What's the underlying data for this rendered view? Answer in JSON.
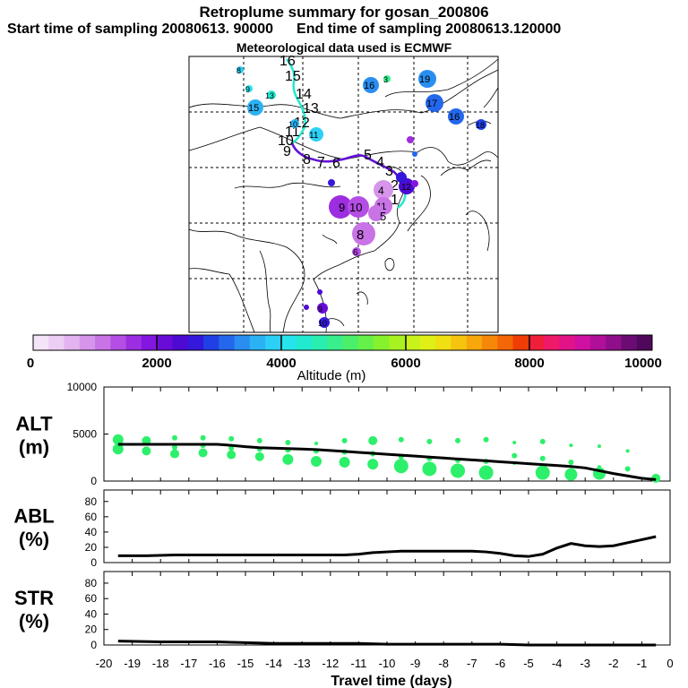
{
  "header": {
    "title": "Retroplume summary for gosan_200806",
    "start_label": "Start time of sampling 20080613. 90000",
    "end_label": "End time of sampling 20080613.120000",
    "met_label": "Meteorological data used is ECMWF"
  },
  "colorbar": {
    "label": "Altitude (m)",
    "ticks": [
      "0",
      "2000",
      "4000",
      "6000",
      "8000",
      "10000"
    ],
    "colors": [
      "#f4e4f8",
      "#eccdf4",
      "#e2b3ef",
      "#d695ea",
      "#c873e6",
      "#b44ee4",
      "#9d2de0",
      "#8316df",
      "#6a0cd8",
      "#4d0ad3",
      "#3418dc",
      "#2040e6",
      "#2467ec",
      "#2a8ef1",
      "#2ab2f4",
      "#2ccff5",
      "#26e4ec",
      "#22ead0",
      "#2aedb0",
      "#39ee8c",
      "#4cef6a",
      "#66f14a",
      "#86f22e",
      "#a8f221",
      "#c7f21b",
      "#e0ef16",
      "#f0df12",
      "#f6c40e",
      "#f7a60b",
      "#f78708",
      "#f46706",
      "#ef3d05",
      "#ef1f3a",
      "#ee1968",
      "#e21388",
      "#cf10a0",
      "#b00f99",
      "#8f0e8a",
      "#6d0b74",
      "#4f085c"
    ]
  },
  "map": {
    "trajectory_labels": [
      "16",
      "15",
      "14",
      "13",
      "12",
      "11",
      "10",
      "9",
      "8",
      "7",
      "6",
      "5",
      "4",
      "3",
      "2",
      "1"
    ],
    "blobs": [
      {
        "label": "8",
        "color": "#2ccff5"
      },
      {
        "label": "9",
        "color": "#26e4ec"
      },
      {
        "label": "13",
        "color": "#22ead0"
      },
      {
        "label": "15",
        "color": "#2ab2f4"
      },
      {
        "label": "16",
        "color": "#2a8ef1"
      },
      {
        "label": "3",
        "color": "#39ee8c"
      },
      {
        "label": "19",
        "color": "#2a8ef1"
      },
      {
        "label": "17",
        "color": "#2467ec"
      },
      {
        "label": "16",
        "color": "#2467ec"
      },
      {
        "label": "18",
        "color": "#2040e6"
      },
      {
        "label": "11",
        "color": "#2ccff5"
      },
      {
        "label": "10",
        "color": "#2ab2f4"
      },
      {
        "label": "4",
        "color": "#d695ea"
      },
      {
        "label": "11",
        "color": "#c873e6"
      },
      {
        "label": "9",
        "color": "#9d2de0"
      },
      {
        "label": "10",
        "color": "#b44ee4"
      },
      {
        "label": "5",
        "color": "#c873e6"
      },
      {
        "label": "8",
        "color": "#c873e6"
      },
      {
        "label": "6",
        "color": "#b44ee4"
      },
      {
        "label": "12",
        "color": "#4d0ad3"
      },
      {
        "label": "9",
        "color": "#6a0cd8"
      },
      {
        "label": "10",
        "color": "#3418dc"
      }
    ]
  },
  "chart_data": [
    {
      "type": "line",
      "title": "ALT",
      "ylabel": "ALT (m)",
      "ylabel_lines": [
        "ALT",
        "(m)"
      ],
      "yticks": [
        "10000",
        "5000",
        "0"
      ],
      "ylim": [
        0,
        10000
      ],
      "xlim": [
        -20,
        0
      ],
      "x": [
        -19.5,
        -19,
        -18.5,
        -18,
        -17.5,
        -17,
        -16.5,
        -16,
        -15.5,
        -15,
        -14.5,
        -14,
        -13.5,
        -13,
        -12.5,
        -12,
        -11.5,
        -11,
        -10.5,
        -10,
        -9.5,
        -9,
        -8.5,
        -8,
        -7.5,
        -7,
        -6.5,
        -6,
        -5.5,
        -5,
        -4.5,
        -4,
        -3.5,
        -3,
        -2.5,
        -2,
        -1.5,
        -1,
        -0.5
      ],
      "values": [
        3900,
        3900,
        3900,
        3900,
        3900,
        3900,
        3900,
        3900,
        3800,
        3650,
        3550,
        3500,
        3450,
        3400,
        3350,
        3250,
        3150,
        3050,
        2950,
        2850,
        2750,
        2650,
        2550,
        2450,
        2350,
        2250,
        2150,
        2050,
        1950,
        1850,
        1750,
        1650,
        1550,
        1400,
        1100,
        800,
        550,
        300,
        150
      ],
      "dots": [
        {
          "x": -19.5,
          "y": 4400,
          "s": 6
        },
        {
          "x": -19.5,
          "y": 3400,
          "s": 6
        },
        {
          "x": -18.5,
          "y": 4300,
          "s": 5
        },
        {
          "x": -18.5,
          "y": 3200,
          "s": 5
        },
        {
          "x": -17.5,
          "y": 4600,
          "s": 3
        },
        {
          "x": -17.5,
          "y": 3600,
          "s": 3
        },
        {
          "x": -17.5,
          "y": 2900,
          "s": 5
        },
        {
          "x": -16.5,
          "y": 4600,
          "s": 3
        },
        {
          "x": -16.5,
          "y": 3800,
          "s": 3
        },
        {
          "x": -16.5,
          "y": 3000,
          "s": 5
        },
        {
          "x": -15.5,
          "y": 4500,
          "s": 3
        },
        {
          "x": -15.5,
          "y": 3500,
          "s": 3
        },
        {
          "x": -15.5,
          "y": 2800,
          "s": 5
        },
        {
          "x": -14.5,
          "y": 4300,
          "s": 3
        },
        {
          "x": -14.5,
          "y": 3400,
          "s": 3
        },
        {
          "x": -14.5,
          "y": 2600,
          "s": 5
        },
        {
          "x": -13.5,
          "y": 4100,
          "s": 3
        },
        {
          "x": -13.5,
          "y": 3300,
          "s": 3
        },
        {
          "x": -13.5,
          "y": 2300,
          "s": 6
        },
        {
          "x": -12.5,
          "y": 4000,
          "s": 2
        },
        {
          "x": -12.5,
          "y": 3200,
          "s": 3
        },
        {
          "x": -12.5,
          "y": 2100,
          "s": 6
        },
        {
          "x": -11.5,
          "y": 4300,
          "s": 3
        },
        {
          "x": -11.5,
          "y": 3100,
          "s": 3
        },
        {
          "x": -11.5,
          "y": 2000,
          "s": 6
        },
        {
          "x": -10.5,
          "y": 4300,
          "s": 5
        },
        {
          "x": -10.5,
          "y": 2900,
          "s": 3
        },
        {
          "x": -10.5,
          "y": 1800,
          "s": 6
        },
        {
          "x": -9.5,
          "y": 4400,
          "s": 3
        },
        {
          "x": -9.5,
          "y": 2600,
          "s": 3
        },
        {
          "x": -9.5,
          "y": 1600,
          "s": 8
        },
        {
          "x": -8.5,
          "y": 4200,
          "s": 3
        },
        {
          "x": -8.5,
          "y": 2400,
          "s": 3
        },
        {
          "x": -8.5,
          "y": 1300,
          "s": 8
        },
        {
          "x": -7.5,
          "y": 4300,
          "s": 3
        },
        {
          "x": -7.5,
          "y": 2200,
          "s": 3
        },
        {
          "x": -7.5,
          "y": 1100,
          "s": 8
        },
        {
          "x": -6.5,
          "y": 4400,
          "s": 3
        },
        {
          "x": -6.5,
          "y": 2100,
          "s": 3
        },
        {
          "x": -6.5,
          "y": 900,
          "s": 8
        },
        {
          "x": -5.5,
          "y": 4100,
          "s": 2
        },
        {
          "x": -5.5,
          "y": 2700,
          "s": 3
        },
        {
          "x": -5.5,
          "y": 1900,
          "s": 2
        },
        {
          "x": -4.5,
          "y": 4200,
          "s": 3
        },
        {
          "x": -4.5,
          "y": 2400,
          "s": 3
        },
        {
          "x": -4.5,
          "y": 900,
          "s": 8
        },
        {
          "x": -3.5,
          "y": 3800,
          "s": 2
        },
        {
          "x": -3.5,
          "y": 2000,
          "s": 3
        },
        {
          "x": -3.5,
          "y": 700,
          "s": 7
        },
        {
          "x": -2.5,
          "y": 3700,
          "s": 2
        },
        {
          "x": -2.5,
          "y": 1500,
          "s": 2
        },
        {
          "x": -2.5,
          "y": 800,
          "s": 7
        },
        {
          "x": -1.5,
          "y": 3200,
          "s": 2
        },
        {
          "x": -1.5,
          "y": 1300,
          "s": 3
        },
        {
          "x": -0.5,
          "y": 300,
          "s": 5
        }
      ]
    },
    {
      "type": "line",
      "title": "ABL",
      "ylabel": "ABL (%)",
      "ylabel_lines": [
        "ABL",
        "(%)"
      ],
      "yticks": [
        "80",
        "60",
        "40",
        "20",
        "0"
      ],
      "ylim": [
        0,
        95
      ],
      "xlim": [
        -20,
        0
      ],
      "x": [
        -19.5,
        -18.5,
        -17.5,
        -16.5,
        -15.5,
        -14.5,
        -13.5,
        -12.5,
        -11.5,
        -11,
        -10.5,
        -10,
        -9.5,
        -9,
        -8,
        -7,
        -6.5,
        -6,
        -5.5,
        -5,
        -4.5,
        -4,
        -3.5,
        -3,
        -2.5,
        -2,
        -1.5,
        -1,
        -0.5
      ],
      "values": [
        9,
        9,
        10,
        10,
        10,
        10,
        10,
        10,
        10,
        11,
        13,
        14,
        15,
        15,
        15,
        15,
        14,
        12,
        9,
        8,
        11,
        19,
        25,
        22,
        21,
        22,
        26,
        30,
        34
      ]
    },
    {
      "type": "line",
      "title": "STR",
      "ylabel": "STR (%)",
      "ylabel_lines": [
        "STR",
        "(%)"
      ],
      "yticks": [
        "80",
        "60",
        "40",
        "20",
        "0"
      ],
      "ylim": [
        0,
        95
      ],
      "xlim": [
        -20,
        0
      ],
      "x": [
        -19.5,
        -18,
        -16,
        -15,
        -14,
        -13,
        -12,
        -11,
        -10,
        -9,
        -8,
        -7,
        -6,
        -5,
        -4,
        -3,
        -2,
        -1,
        -0.5
      ],
      "values": [
        5,
        4,
        4,
        3,
        2,
        2,
        2,
        2,
        1,
        1,
        1,
        1,
        1,
        0,
        0,
        0,
        0,
        0,
        0
      ]
    }
  ],
  "xaxis": {
    "label": "Travel time (days)",
    "ticks": [
      "-20",
      "-19",
      "-18",
      "-17",
      "-16",
      "-15",
      "-14",
      "-13",
      "-12",
      "-11",
      "-10",
      "-9",
      "-8",
      "-7",
      "-6",
      "-5",
      "-4",
      "-3",
      "-2",
      "-1",
      "0"
    ]
  }
}
